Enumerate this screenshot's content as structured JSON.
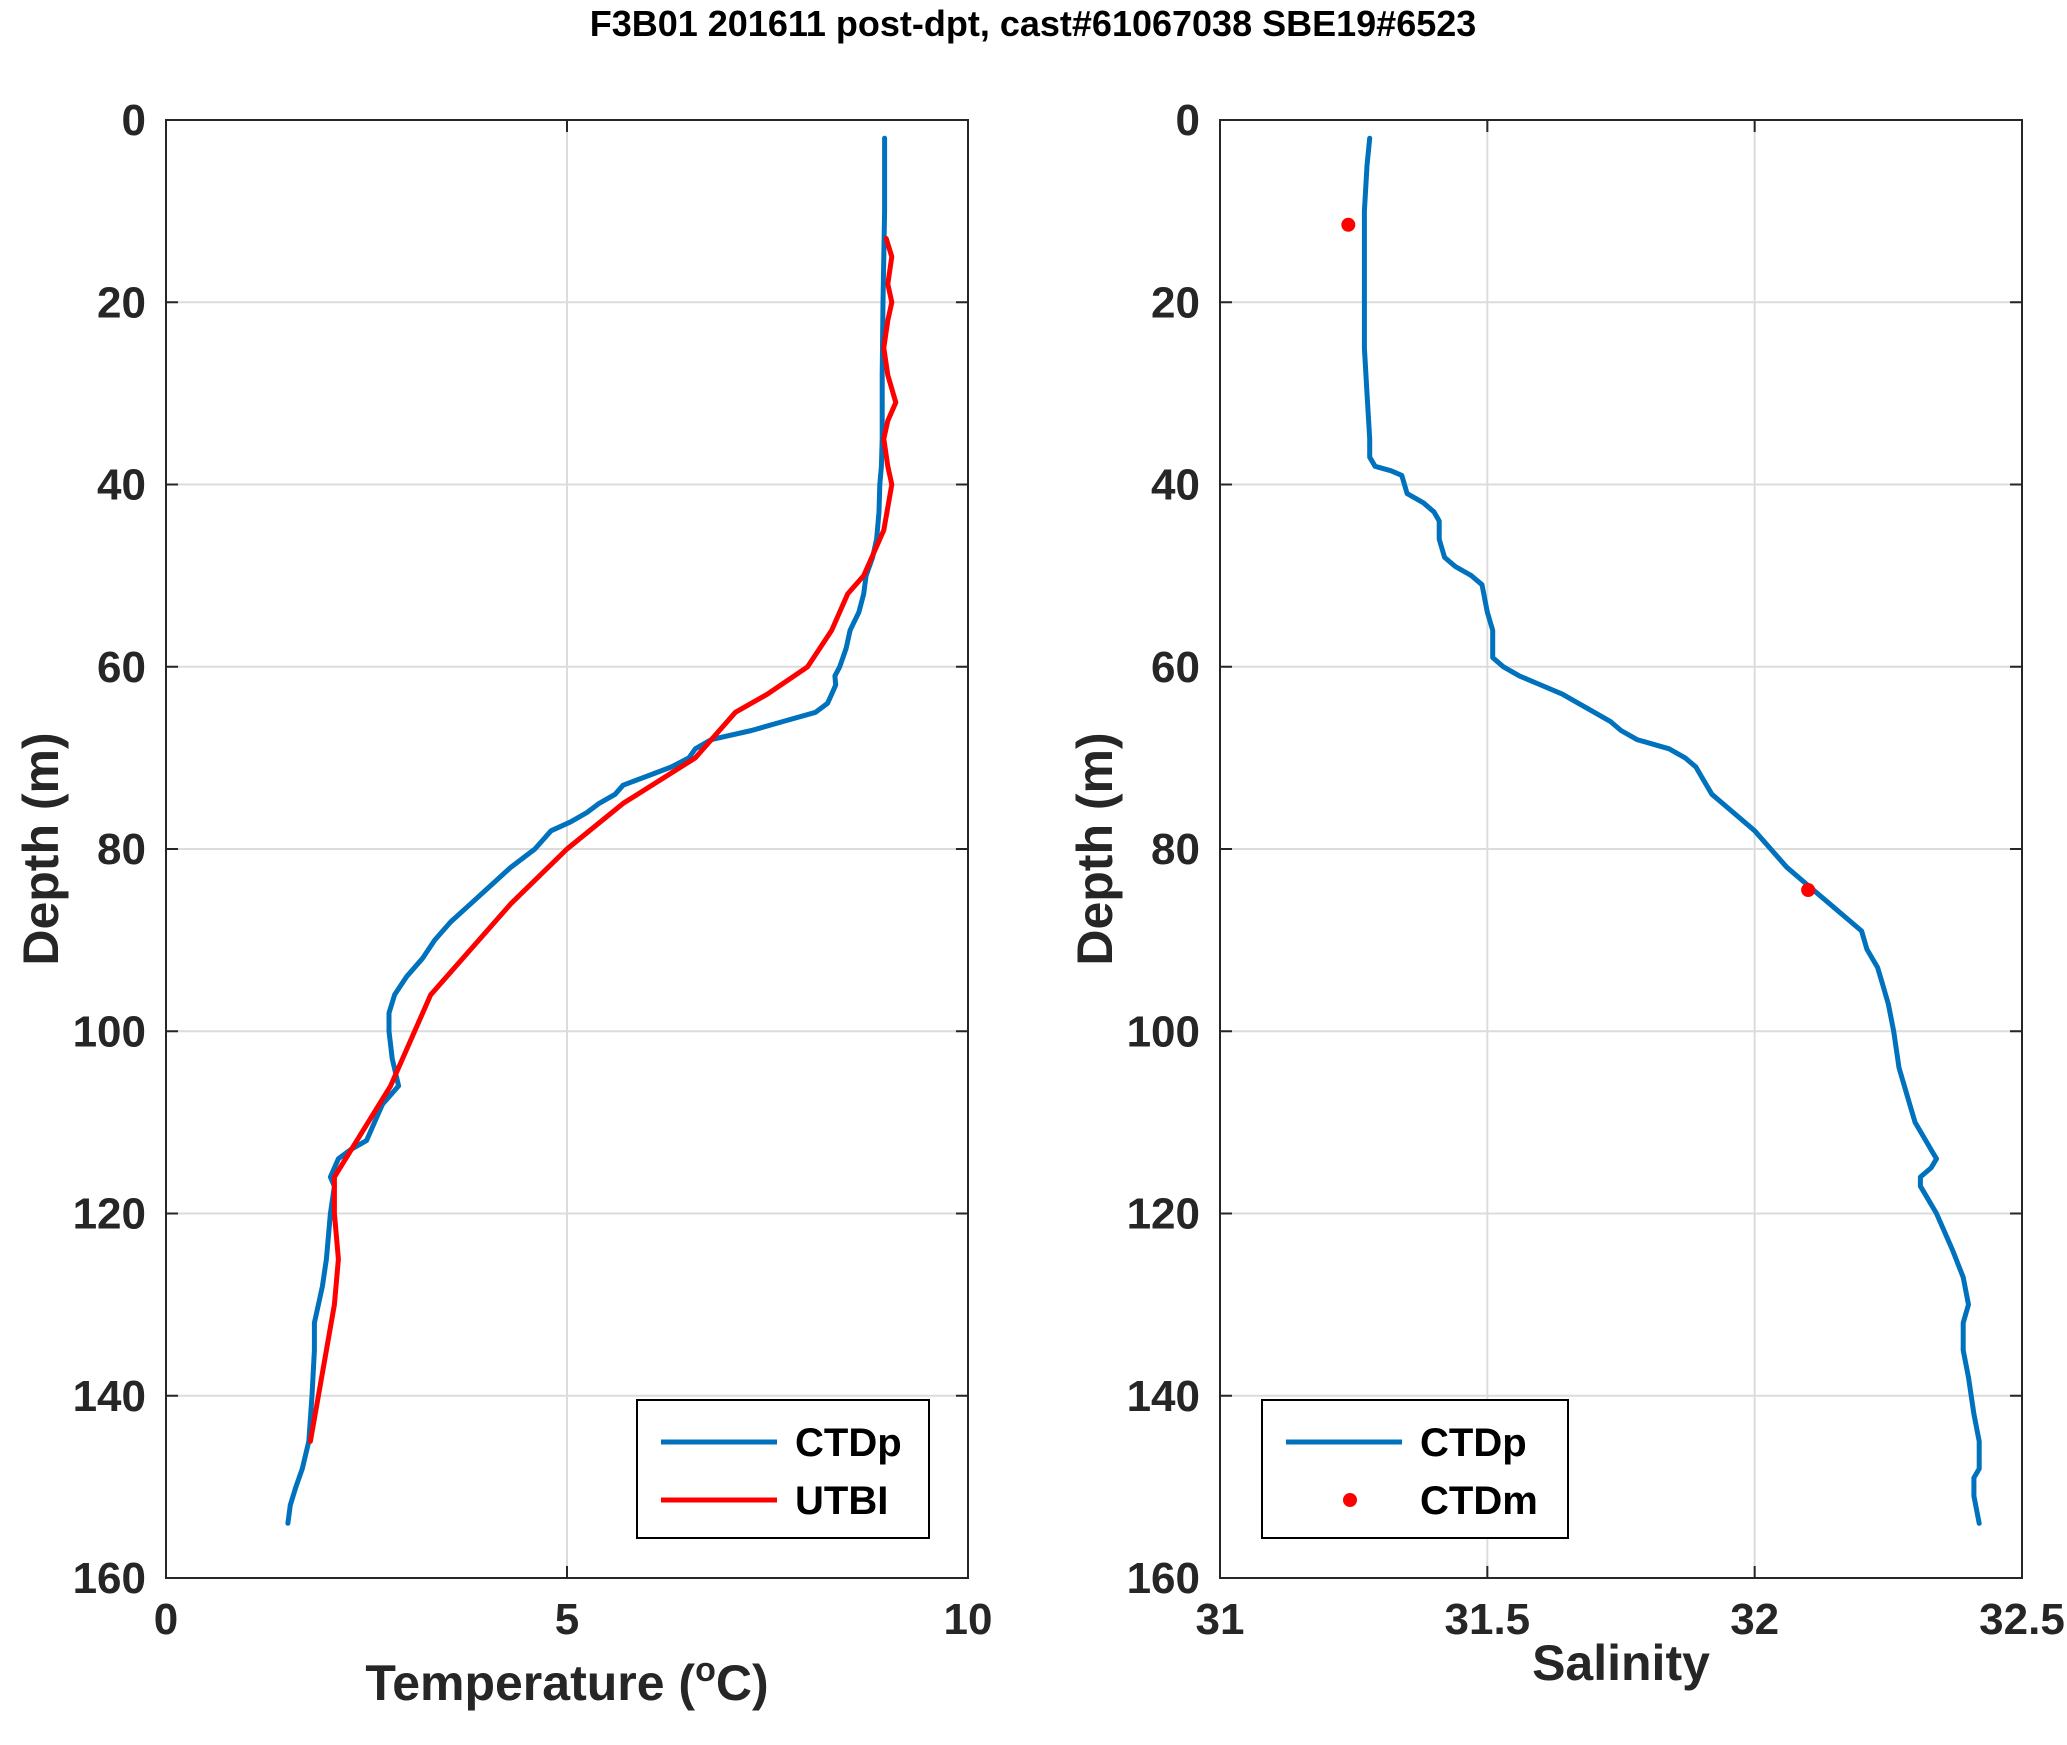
{
  "title": "F3B01 201611 post-dpt, cast#61067038 SBE19#6523",
  "colors": {
    "ctdp": "#0072BD",
    "red": "#FF0000",
    "grid": "#DCDCDC",
    "axis": "#262626"
  },
  "chart_data": [
    {
      "type": "line",
      "xlabel": "Temperature (oC)",
      "xlabel_main": "Temperature (",
      "xlabel_sup": "o",
      "xlabel_end": "C)",
      "ylabel": "Depth (m)",
      "xlim": [
        0,
        10
      ],
      "ylim": [
        160,
        0
      ],
      "xticks": [
        0,
        5,
        10
      ],
      "xtick_labels": [
        "0",
        "5",
        "10"
      ],
      "yticks": [
        0,
        20,
        40,
        60,
        80,
        100,
        120,
        140,
        160
      ],
      "ytick_labels": [
        "0",
        "20",
        "40",
        "60",
        "80",
        "100",
        "120",
        "140",
        "160"
      ],
      "grid": true,
      "legend_position": "bottom-right",
      "series": [
        {
          "name": "CTDp",
          "style": "line",
          "color": "#0072BD",
          "x": [
            8.96,
            8.96,
            8.94,
            8.93,
            8.93,
            8.92,
            8.9,
            8.89,
            8.86,
            8.81,
            8.73,
            8.7,
            8.64,
            8.53,
            8.48,
            8.4,
            8.34,
            8.35,
            8.3,
            8.25,
            8.1,
            7.7,
            7.3,
            6.8,
            6.6,
            6.52,
            6.3,
            6.0,
            5.7,
            5.6,
            5.4,
            5.25,
            5.05,
            4.8,
            4.6,
            4.3,
            4.05,
            3.8,
            3.55,
            3.35,
            3.2,
            3.0,
            2.85,
            2.78,
            2.78,
            2.82,
            2.9,
            2.7,
            2.6,
            2.5,
            2.3,
            2.15,
            2.05,
            2.1,
            2.05,
            2.0,
            1.95,
            1.9,
            1.85,
            1.85,
            1.85,
            1.82,
            1.78,
            1.7,
            1.62,
            1.55,
            1.52
          ],
          "y": [
            2,
            10,
            20,
            28,
            35,
            38,
            40,
            43,
            46,
            48,
            50,
            52,
            54,
            56,
            58,
            60,
            61,
            62,
            63,
            64,
            65,
            66,
            67,
            68,
            69,
            70,
            71,
            72,
            73,
            74,
            75,
            76,
            77,
            78,
            80,
            82,
            84,
            86,
            88,
            90,
            92,
            94,
            96,
            98,
            100,
            103,
            106,
            108,
            110,
            112,
            113,
            114,
            116,
            117,
            120,
            125,
            128,
            130,
            132,
            133,
            135,
            140,
            145,
            148,
            150,
            152,
            154
          ]
        },
        {
          "name": "UTBI",
          "style": "line",
          "color": "#FF0000",
          "x": [
            8.98,
            9.05,
            9.0,
            9.05,
            9.0,
            8.95,
            9.0,
            9.1,
            9.0,
            8.95,
            9.0,
            9.05,
            8.95,
            8.8,
            8.7,
            8.5,
            8.3,
            8.0,
            7.5,
            7.1,
            6.6,
            5.7,
            5.0,
            4.3,
            3.3,
            2.8,
            2.1,
            2.1,
            2.15,
            2.1,
            2.0,
            1.9,
            1.8
          ],
          "y": [
            13,
            15,
            18,
            20,
            22,
            25,
            28,
            31,
            33,
            35,
            38,
            40,
            45,
            48,
            50,
            52,
            56,
            60,
            63,
            65,
            70,
            75,
            80,
            86,
            96,
            106,
            116,
            120,
            125,
            130,
            135,
            140,
            145
          ]
        }
      ]
    },
    {
      "type": "line",
      "xlabel": "Salinity",
      "ylabel": "Depth (m)",
      "xlim": [
        31,
        32.5
      ],
      "ylim": [
        160,
        0
      ],
      "xticks": [
        31,
        31.5,
        32,
        32.5
      ],
      "xtick_labels": [
        "31",
        "31.5",
        "32",
        "32.5"
      ],
      "yticks": [
        0,
        20,
        40,
        60,
        80,
        100,
        120,
        140,
        160
      ],
      "ytick_labels": [
        "0",
        "20",
        "40",
        "60",
        "80",
        "100",
        "120",
        "140",
        "160"
      ],
      "grid": true,
      "legend_position": "bottom-left",
      "series": [
        {
          "name": "CTDp",
          "style": "line",
          "color": "#0072BD",
          "x": [
            31.28,
            31.275,
            31.27,
            31.27,
            31.27,
            31.27,
            31.275,
            31.28,
            31.28,
            31.28,
            31.29,
            31.32,
            31.34,
            31.35,
            31.38,
            31.4,
            31.41,
            31.41,
            31.42,
            31.44,
            31.47,
            31.49,
            31.5,
            31.51,
            31.51,
            31.53,
            31.56,
            31.6,
            31.64,
            31.67,
            31.7,
            31.73,
            31.75,
            31.78,
            31.84,
            31.87,
            31.89,
            31.9,
            31.92,
            31.96,
            32.0,
            32.03,
            32.06,
            32.1,
            32.14,
            32.18,
            32.2,
            32.21,
            32.23,
            32.24,
            32.25,
            32.26,
            32.27,
            32.29,
            32.3,
            32.32,
            32.33,
            32.34,
            32.33,
            32.31,
            32.31,
            32.32,
            32.34,
            32.37,
            32.39,
            32.4,
            32.39,
            32.39,
            32.4,
            32.41,
            32.42,
            32.42,
            32.41,
            32.41,
            32.42
          ],
          "y": [
            2,
            5,
            10,
            15,
            20,
            25,
            30,
            35,
            36,
            37,
            38,
            38.5,
            39,
            41,
            42,
            43,
            44,
            46,
            48,
            49,
            50,
            51,
            54,
            56,
            59,
            60,
            61,
            62,
            63,
            64,
            65,
            66,
            67,
            68,
            69,
            70,
            71,
            72,
            74,
            76,
            78,
            80,
            82,
            84,
            86,
            88,
            89,
            91,
            93,
            95,
            97,
            100,
            104,
            108,
            110,
            112,
            113,
            114,
            115,
            116,
            117,
            118,
            120,
            124,
            127,
            130,
            132,
            135,
            138,
            142,
            145,
            148,
            149,
            151,
            154
          ]
        },
        {
          "name": "CTDm",
          "style": "markers",
          "color": "#FF0000",
          "x": [
            31.24,
            32.1
          ],
          "y": [
            11.5,
            84.5
          ]
        }
      ]
    }
  ]
}
